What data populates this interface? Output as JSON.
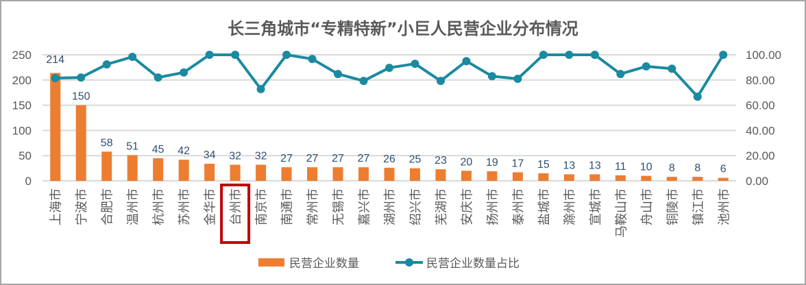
{
  "chart_data": {
    "type": "bar+line",
    "title": "长三角城市“专精特新”小巨人民营企业分布情况",
    "categories": [
      "上海市",
      "宁波市",
      "合肥市",
      "温州市",
      "杭州市",
      "苏州市",
      "金华市",
      "台州市",
      "南京市",
      "南通市",
      "常州市",
      "无锡市",
      "嘉兴市",
      "湖州市",
      "绍兴市",
      "芜湖市",
      "安庆市",
      "扬州市",
      "泰州市",
      "盐城市",
      "滁州市",
      "宣城市",
      "马鞍山市",
      "舟山市",
      "铜陵市",
      "镇江市",
      "池州市"
    ],
    "highlighted_category": "台州市",
    "series": [
      {
        "name": "民营企业数量",
        "type": "bar",
        "axis": "left",
        "color": "#ed7d31",
        "values": [
          214,
          150,
          58,
          51,
          45,
          42,
          34,
          32,
          32,
          27,
          27,
          27,
          27,
          26,
          25,
          23,
          20,
          19,
          17,
          15,
          13,
          13,
          11,
          10,
          8,
          8,
          6
        ]
      },
      {
        "name": "民营企业数量占比",
        "type": "line",
        "axis": "right",
        "color": "#1a8aa0",
        "values": [
          81.5,
          82.0,
          92.4,
          98.4,
          82.0,
          86.0,
          100,
          100,
          72.8,
          100,
          96.7,
          84.8,
          79.3,
          89.7,
          92.9,
          79.3,
          95.0,
          83.0,
          81.0,
          100,
          100,
          100,
          84.8,
          90.8,
          89.0,
          66.8,
          100
        ]
      }
    ],
    "y_left": {
      "ylim": [
        0,
        250
      ],
      "ticks": [
        "0",
        "50",
        "100",
        "150",
        "200",
        "250"
      ]
    },
    "y_right": {
      "ylim": [
        0,
        100
      ],
      "ticks": [
        "0.00",
        "20.00",
        "40.00",
        "60.00",
        "80.00",
        "100.00"
      ]
    },
    "grid": true,
    "legend_position": "bottom"
  }
}
